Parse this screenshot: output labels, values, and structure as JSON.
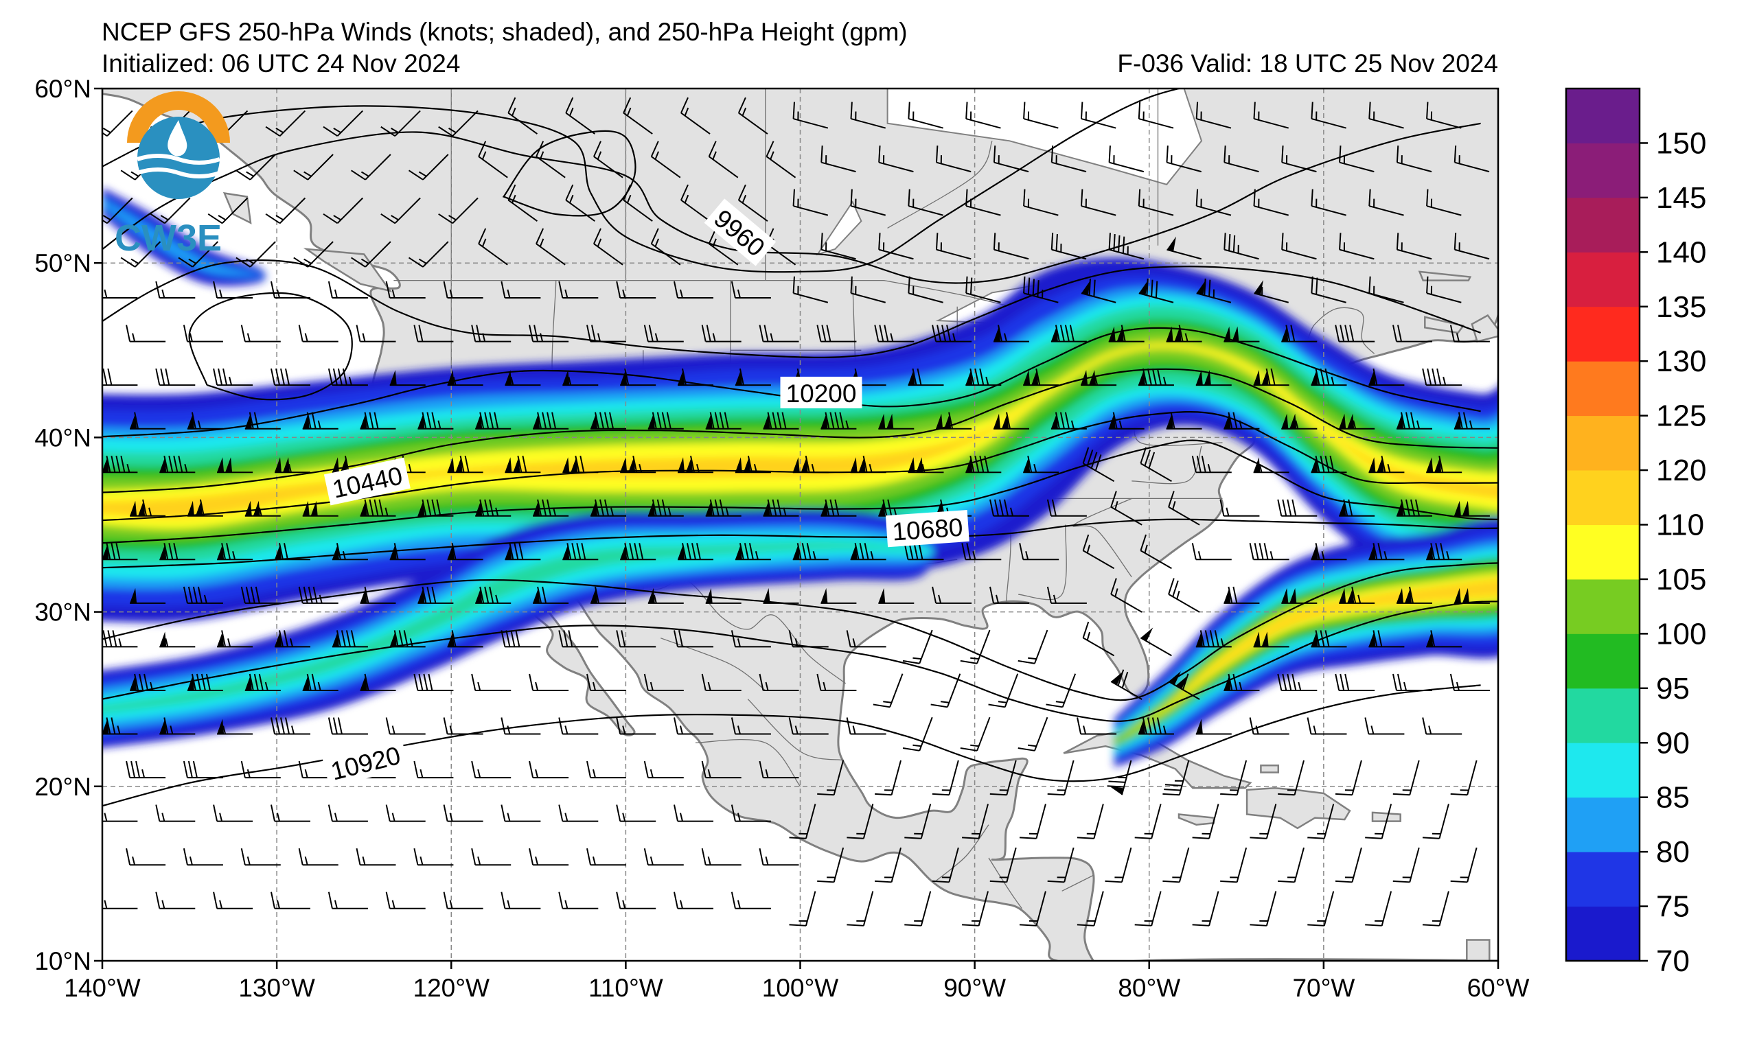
{
  "header": {
    "title": "NCEP GFS 250-hPa Winds (knots; shaded), and 250-hPa Height (gpm)",
    "initialized": "Initialized: 06 UTC 24 Nov 2024",
    "valid": "F-036  Valid: 18 UTC 25 Nov 2024"
  },
  "logo": {
    "text": "CW3E"
  },
  "map": {
    "lon_range": [
      -140,
      -60
    ],
    "lat_range": [
      10,
      60
    ],
    "grid": "dashed",
    "x_ticks": [
      "140°W",
      "130°W",
      "120°W",
      "110°W",
      "100°W",
      "90°W",
      "80°W",
      "70°W",
      "60°W"
    ],
    "y_ticks": [
      "10°N",
      "20°N",
      "30°N",
      "40°N",
      "50°N",
      "60°N"
    ],
    "contour_labels": [
      {
        "text": "9960",
        "lon": -103.5,
        "lat": 51.7,
        "rotate": 40
      },
      {
        "text": "10200",
        "lon": -98.8,
        "lat": 42.5,
        "rotate": 0
      },
      {
        "text": "10440",
        "lon": -124.8,
        "lat": 37.4,
        "rotate": -12
      },
      {
        "text": "10680",
        "lon": -92.7,
        "lat": 34.7,
        "rotate": -4
      },
      {
        "text": "10920",
        "lon": -124.9,
        "lat": 21.3,
        "rotate": -14
      }
    ]
  },
  "colorbar": {
    "units": "knots",
    "ticks": [
      "70",
      "75",
      "80",
      "85",
      "90",
      "95",
      "100",
      "105",
      "110",
      "120",
      "125",
      "130",
      "135",
      "140",
      "145",
      "150"
    ],
    "colors": [
      "#1a1acd",
      "#1f36e6",
      "#1fa0f5",
      "#1ee8ee",
      "#22d9a0",
      "#22bb22",
      "#77cc22",
      "#ffff22",
      "#ffd21e",
      "#ffb21e",
      "#ff7a1e",
      "#ff2a1e",
      "#d81f3f",
      "#a81d5a",
      "#8b1d78",
      "#6a1d8c"
    ]
  },
  "colors": {
    "land": "#e2e2e2",
    "ocean": "#ffffff",
    "coast": "#808080",
    "contour": "#000000"
  }
}
